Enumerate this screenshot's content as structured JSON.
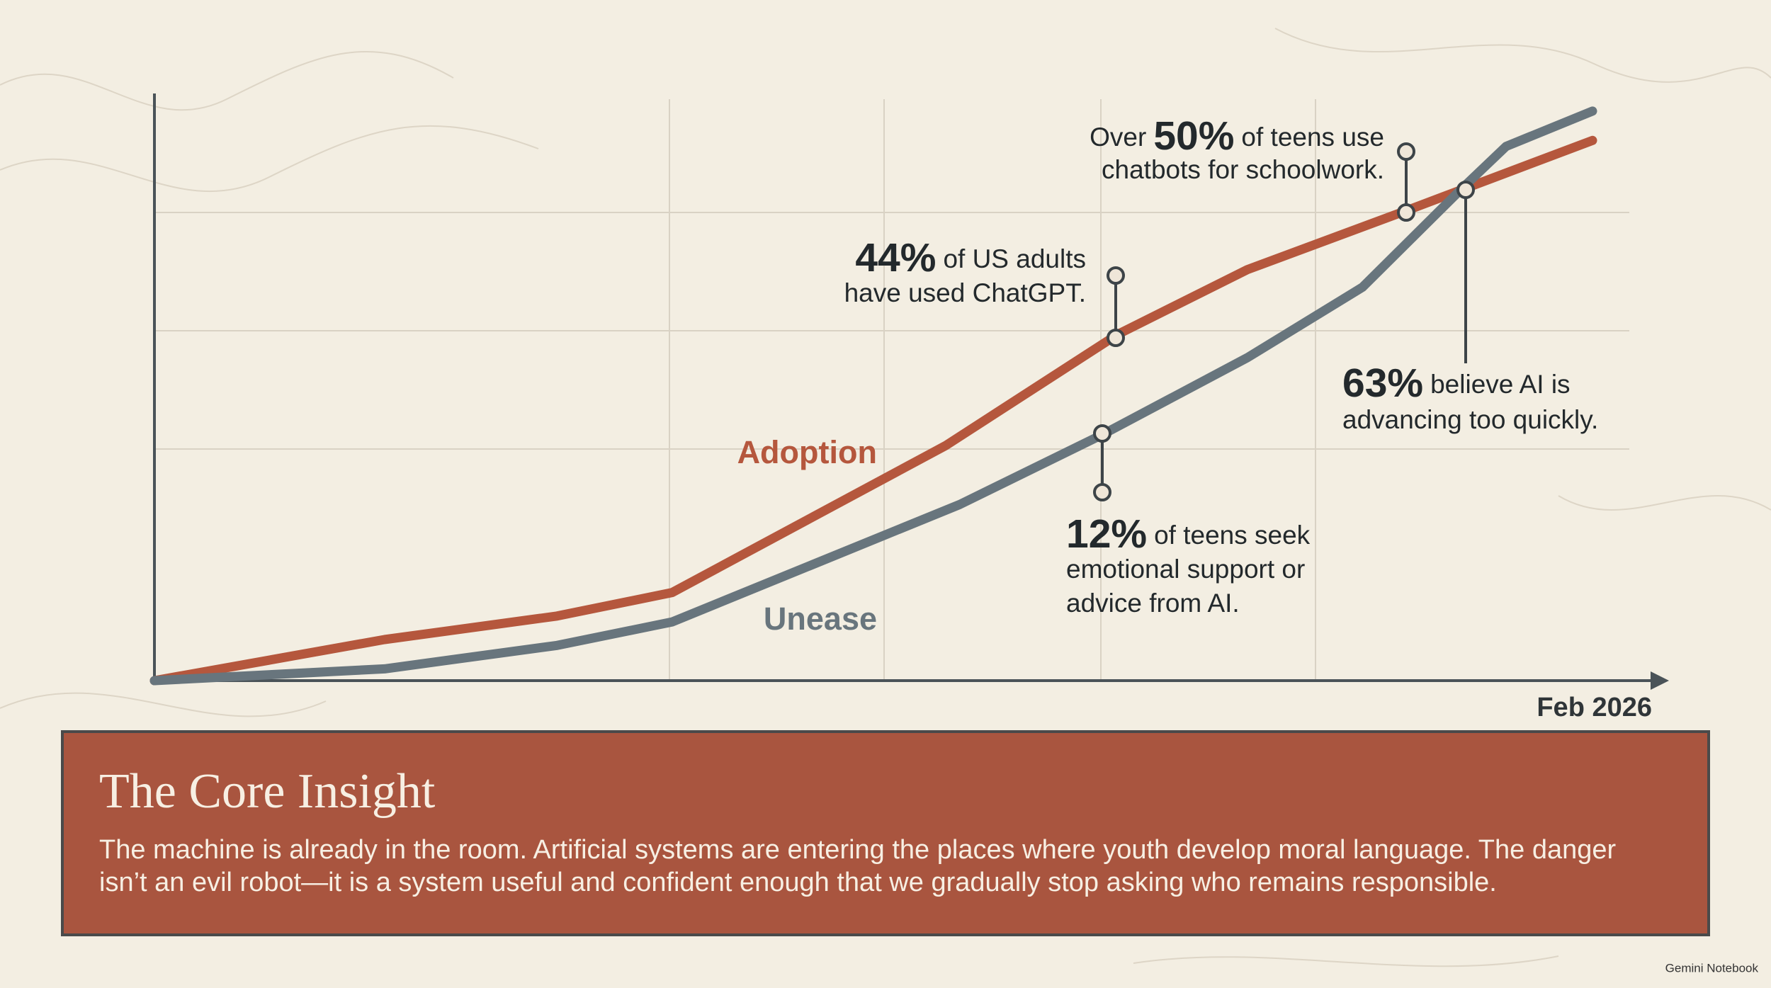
{
  "chart_data": {
    "type": "line",
    "xlim": [
      0,
      100
    ],
    "ylim": [
      0,
      100
    ],
    "x_end_label": "Feb 2026",
    "series": [
      {
        "name": "Adoption",
        "color": "#b5573d",
        "x": [
          0,
          16,
          28,
          36,
          55,
          67,
          76,
          87,
          100
        ],
        "values": [
          0,
          7,
          11,
          15,
          40,
          59,
          70,
          80,
          92
        ]
      },
      {
        "name": "Unease",
        "color": "#68757d",
        "x": [
          0,
          16,
          28,
          36,
          56,
          66,
          76,
          84,
          91,
          94,
          100
        ],
        "values": [
          0,
          2,
          6,
          10,
          30,
          42,
          55,
          67,
          84,
          91,
          97
        ]
      }
    ],
    "annotations": [
      {
        "highlight": "44%",
        "post": "of US adults",
        "lines": [
          "have used ChatGPT."
        ]
      },
      {
        "pre": "Over",
        "highlight": "50%",
        "post": "of teens use",
        "lines": [
          "chatbots for schoolwork."
        ]
      },
      {
        "highlight": "63%",
        "post": "believe AI is",
        "lines": [
          "advancing too quickly."
        ]
      },
      {
        "highlight": "12%",
        "post": "of teens seek",
        "lines": [
          "emotional support or",
          "advice from AI."
        ]
      }
    ]
  },
  "insight": {
    "title": "The Core Insight",
    "body": [
      "The machine is already in the room. Artificial systems are entering the places where youth develop moral language. The danger",
      "isn’t an evil robot—it is a system useful and confident enough that we gradually stop asking who remains responsible."
    ]
  },
  "footer": "Gemini Notebook"
}
